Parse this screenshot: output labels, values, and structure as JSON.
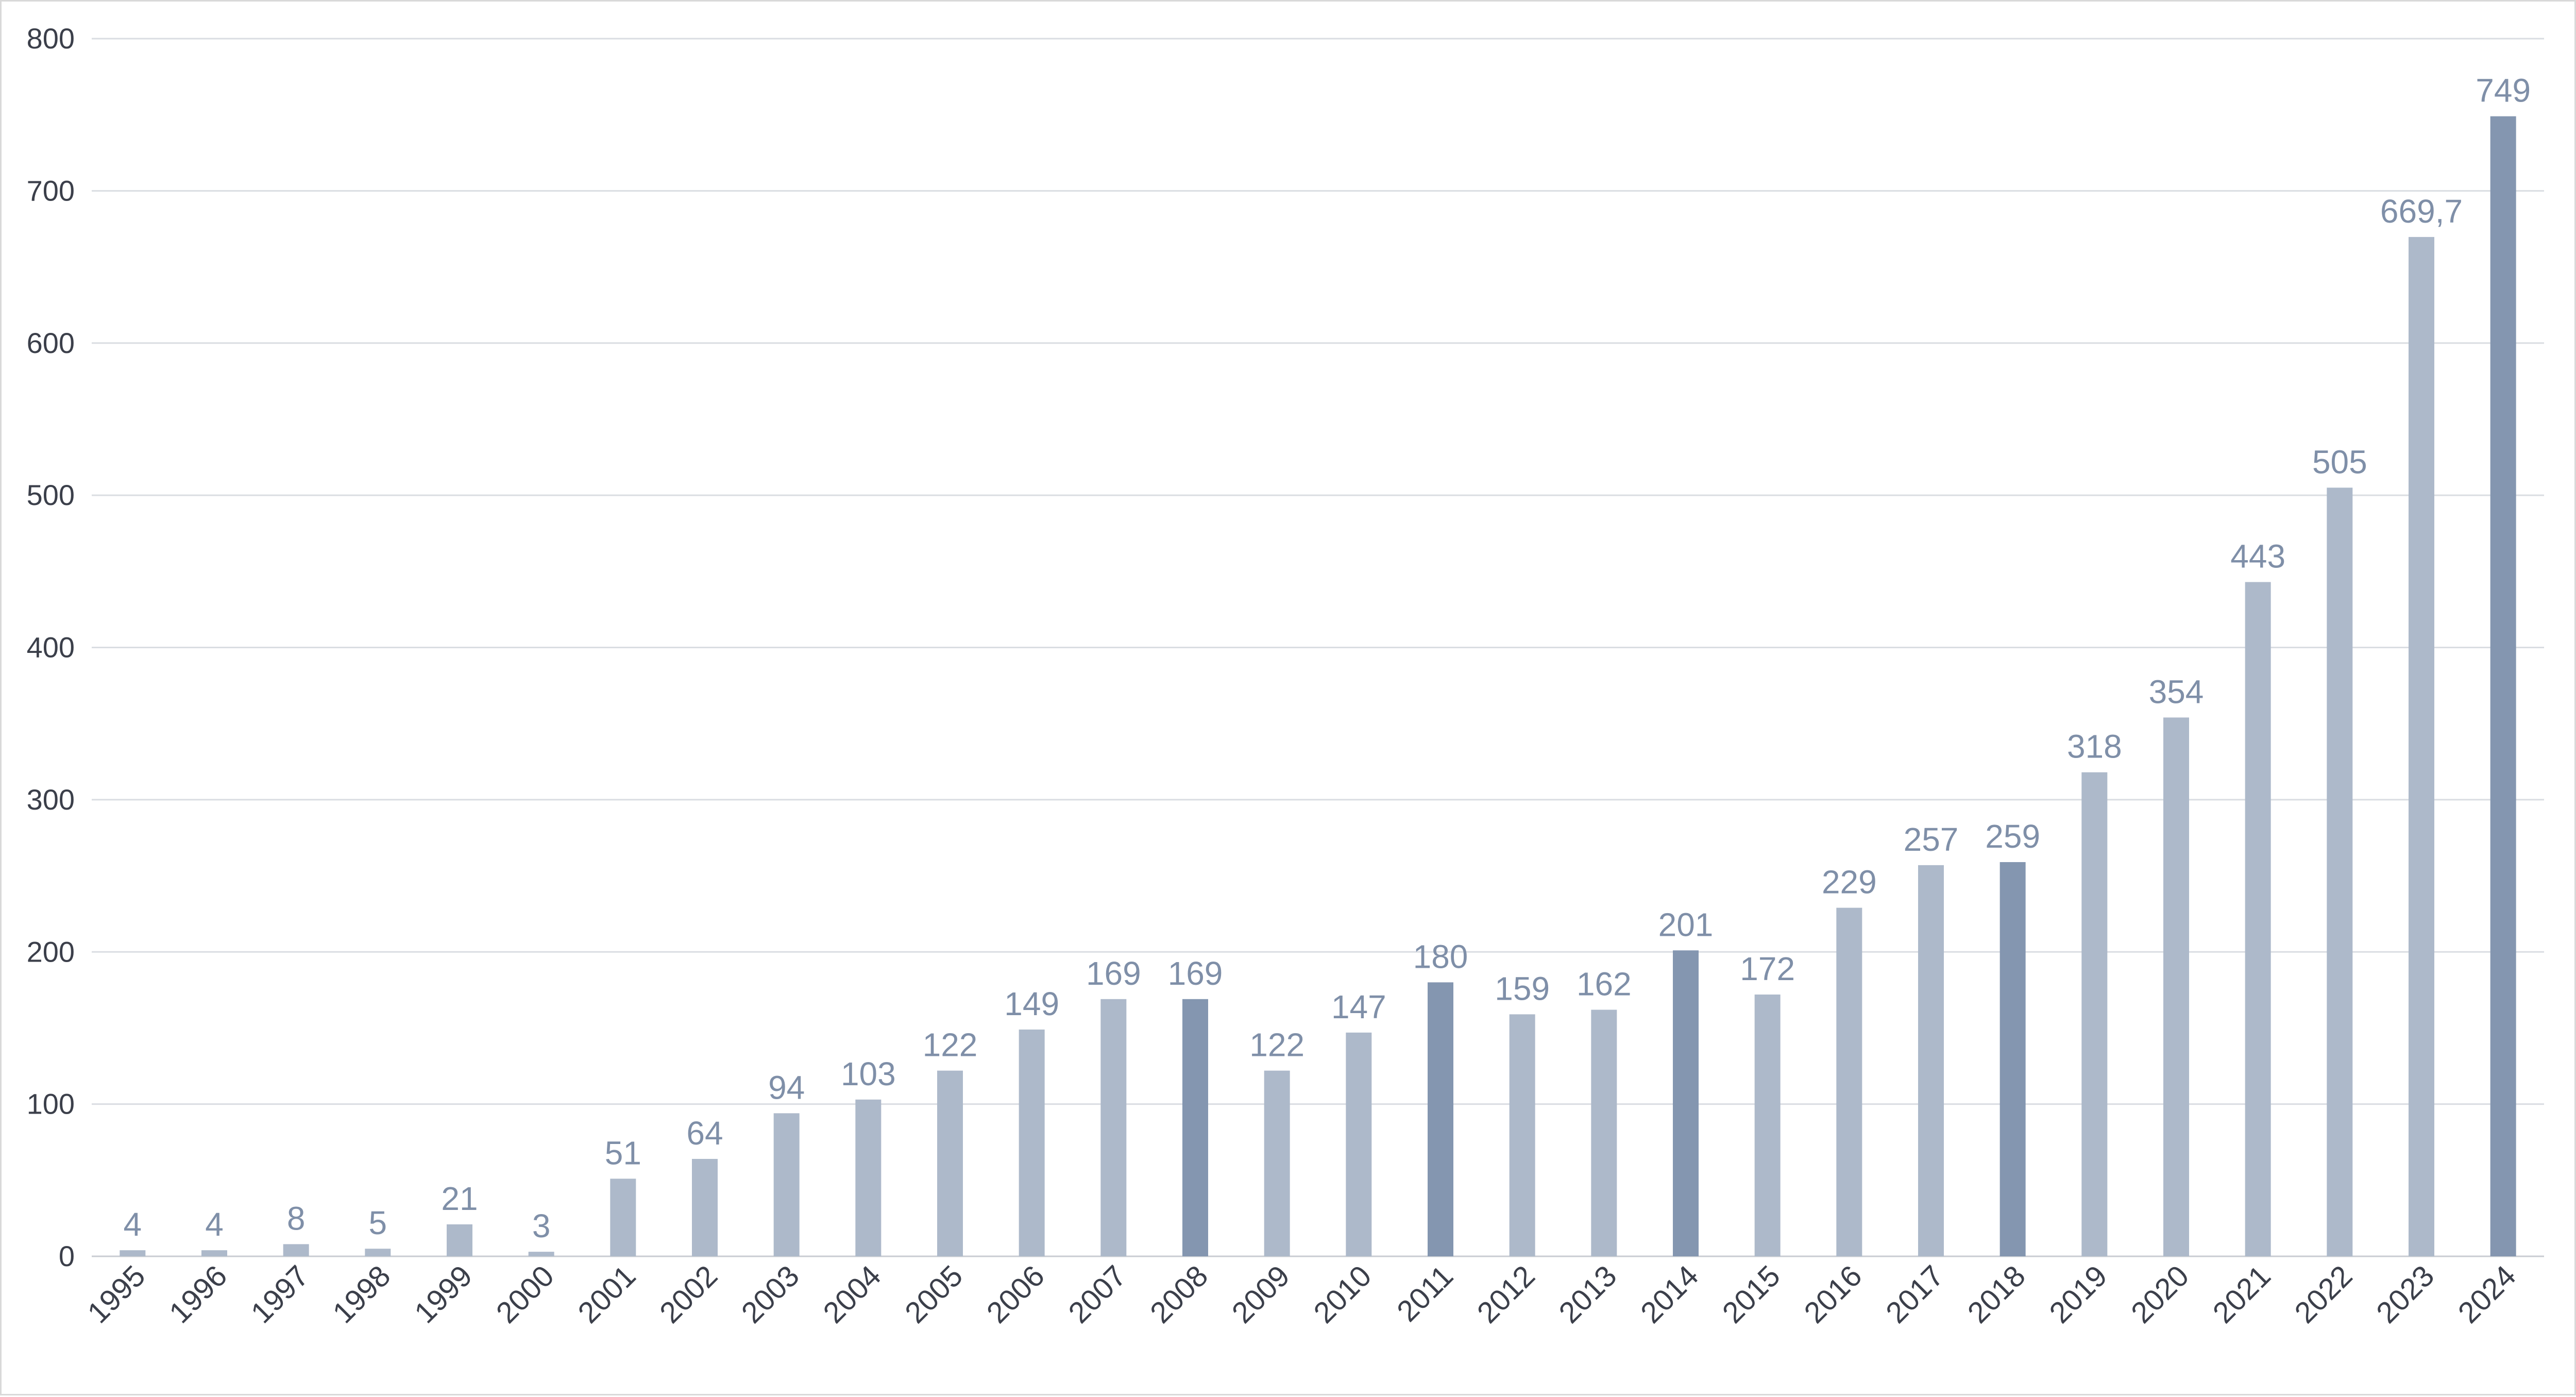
{
  "chart_data": {
    "type": "bar",
    "title": "",
    "xlabel": "",
    "ylabel": "",
    "ylim": [
      0,
      800
    ],
    "yticks": [
      0,
      100,
      200,
      300,
      400,
      500,
      600,
      700,
      800
    ],
    "grid": true,
    "legend": "none",
    "colors": {
      "bar": "#adb9ca",
      "highlight": "#8496b0",
      "label": "#7f8fa8",
      "grid": "#dadde2"
    },
    "categories": [
      "1995",
      "1996",
      "1997",
      "1998",
      "1999",
      "2000",
      "2001",
      "2002",
      "2003",
      "2004",
      "2005",
      "2006",
      "2007",
      "2008",
      "2009",
      "2010",
      "2011",
      "2012",
      "2013",
      "2014",
      "2015",
      "2016",
      "2017",
      "2018",
      "2019",
      "2020",
      "2021",
      "2022",
      "2023",
      "2024"
    ],
    "values": [
      4,
      4,
      8,
      5,
      21,
      3,
      51,
      64,
      94,
      103,
      122,
      149,
      169,
      169,
      122,
      147,
      180,
      159,
      162,
      201,
      172,
      229,
      257,
      259,
      318,
      354,
      443,
      505,
      669.7,
      749
    ],
    "value_labels": [
      "4",
      "4",
      "8",
      "5",
      "21",
      "3",
      "51",
      "64",
      "94",
      "103",
      "122",
      "149",
      "169",
      "169",
      "122",
      "147",
      "180",
      "159",
      "162",
      "201",
      "172",
      "229",
      "257",
      "259",
      "318",
      "354",
      "443",
      "505",
      "669,7",
      "749"
    ],
    "highlighted": [
      "2008",
      "2011",
      "2014",
      "2018",
      "2024"
    ]
  }
}
